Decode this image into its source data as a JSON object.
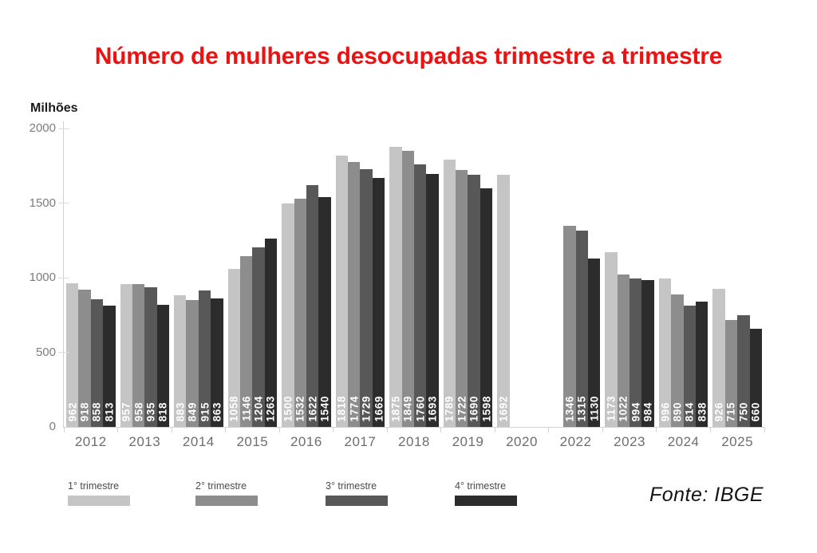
{
  "page": {
    "unit_label": "Milhões",
    "source": "Fonte: IBGE"
  },
  "chart_data": {
    "type": "bar",
    "title": "Número de mulheres desocupadas trimestre a trimestre",
    "title_color": "#ee1111",
    "ylabel": "Milhões",
    "xlabel": "",
    "ylim": [
      0,
      2000
    ],
    "yticks": [
      0,
      500,
      1000,
      1500,
      2000
    ],
    "grid": false,
    "legend_position": "bottom-left",
    "source": "Fonte: IBGE",
    "categories": [
      "2012",
      "2013",
      "2014",
      "2015",
      "2016",
      "2017",
      "2018",
      "2019",
      "2020",
      "2022",
      "2023",
      "2024",
      "2025"
    ],
    "series": [
      {
        "name": "1° trimestre",
        "color": "#c5c5c5",
        "values": [
          962,
          957,
          883,
          1058,
          1500,
          1818,
          1875,
          1789,
          1692,
          null,
          1173,
          996,
          926
        ]
      },
      {
        "name": "2° trimestre",
        "color": "#8d8d8d",
        "values": [
          918,
          958,
          849,
          1146,
          1532,
          1774,
          1849,
          1722,
          null,
          1346,
          1022,
          890,
          715
        ]
      },
      {
        "name": "3° trimestre",
        "color": "#585858",
        "values": [
          858,
          935,
          915,
          1204,
          1622,
          1729,
          1760,
          1690,
          null,
          1315,
          994,
          814,
          750
        ]
      },
      {
        "name": "4° trimestre",
        "color": "#2c2c2c",
        "values": [
          813,
          818,
          863,
          1263,
          1540,
          1669,
          1693,
          1598,
          null,
          1130,
          984,
          838,
          660
        ]
      }
    ]
  }
}
